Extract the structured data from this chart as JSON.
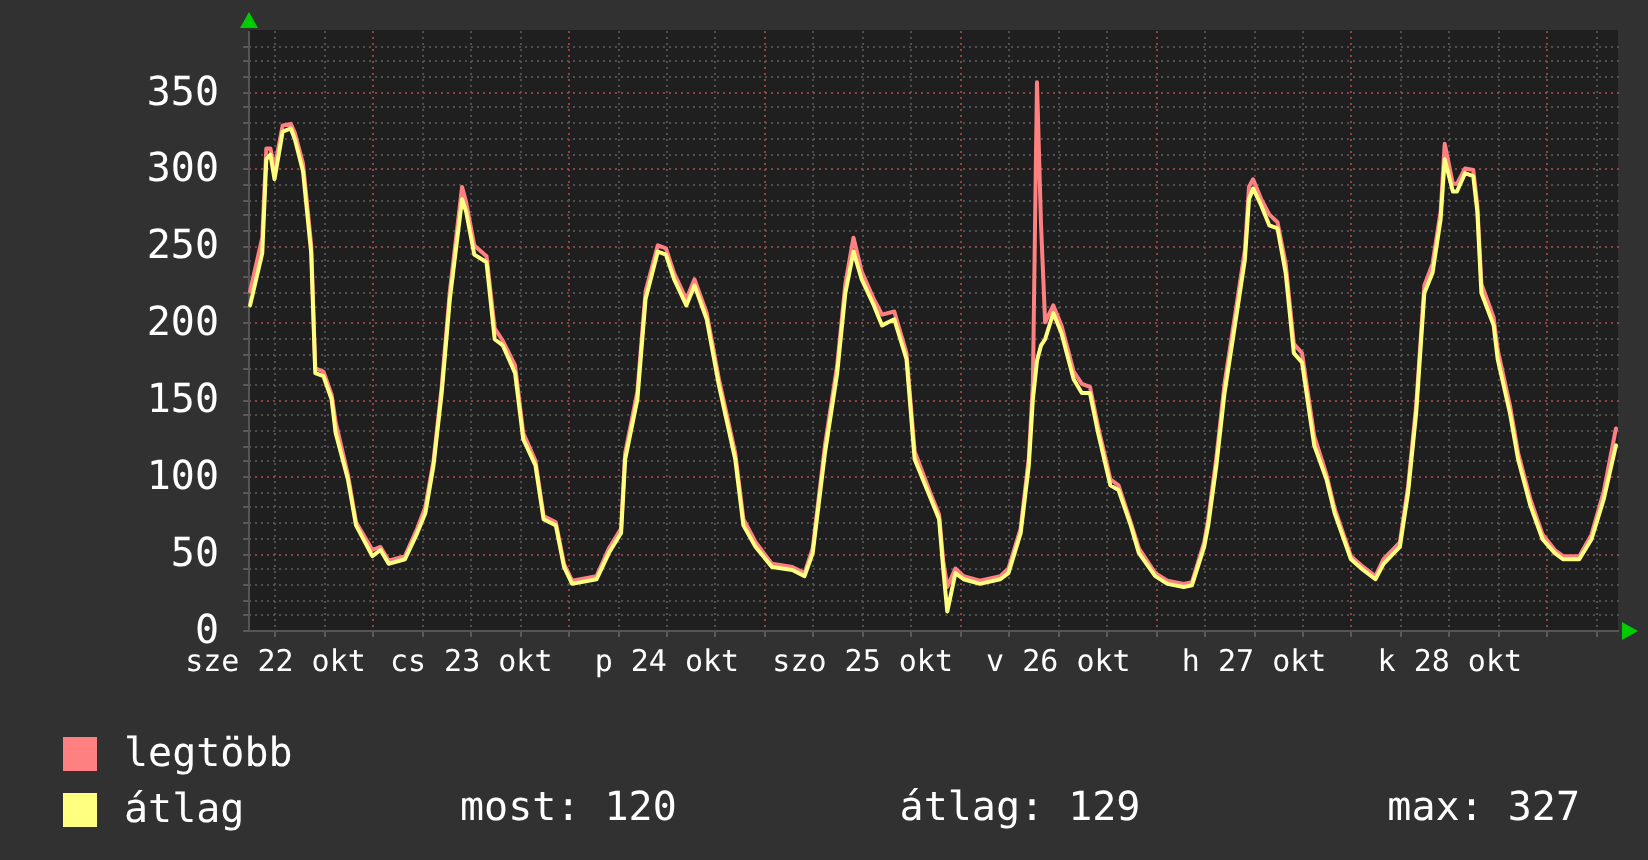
{
  "chart_data": {
    "type": "line",
    "x": [
      "--10-22T09:00",
      "--10-22T10:30",
      "--10-22T11:00",
      "--10-22T11:30",
      "--10-22T12:00",
      "--10-22T13:00",
      "--10-22T14:00",
      "--10-22T14:30",
      "--10-22T15:30",
      "--10-22T16:30",
      "--10-22T17:00",
      "--10-22T18:00",
      "--10-22T19:00",
      "--10-22T19:30",
      "--10-22T21:00",
      "--10-22T22:00",
      "--10-23T00:00",
      "--10-23T01:00",
      "--10-23T02:00",
      "--10-23T04:00",
      "--10-23T05:30",
      "--10-23T06:30",
      "--10-23T07:30",
      "--10-23T08:30",
      "--10-23T09:30",
      "--10-23T11:00",
      "--10-23T11:30",
      "--10-23T12:30",
      "--10-23T14:00",
      "--10-23T15:00",
      "--10-23T16:00",
      "--10-23T17:30",
      "--10-23T18:30",
      "--10-23T20:00",
      "--10-23T21:00",
      "--10-23T22:30",
      "--10-23T23:30",
      "--10-24T00:30",
      "--10-24T03:30",
      "--10-24T05:00",
      "--10-24T06:30",
      "--10-24T07:00",
      "--10-24T08:30",
      "--10-24T09:30",
      "--10-24T11:00",
      "--10-24T12:00",
      "--10-24T13:00",
      "--10-24T14:30",
      "--10-24T15:30",
      "--10-24T17:00",
      "--10-24T18:30",
      "--10-24T20:30",
      "--10-24T21:30",
      "--10-24T23:00",
      "--10-25T01:00",
      "--10-25T03:30",
      "--10-25T05:00",
      "--10-25T06:00",
      "--10-25T07:30",
      "--10-25T09:00",
      "--10-25T10:00",
      "--10-25T11:00",
      "--10-25T12:00",
      "--10-25T13:30",
      "--10-25T14:30",
      "--10-25T16:00",
      "--10-25T17:30",
      "--10-25T18:30",
      "--10-25T20:30",
      "--10-25T21:30",
      "--10-25T22:00",
      "--10-25T22:30",
      "--10-25T23:30",
      "--10-26T00:30",
      "--10-26T02:30",
      "--10-26T05:00",
      "--10-26T06:00",
      "--10-26T07:30",
      "--10-26T08:30",
      "--10-26T09:00",
      "--10-26T09:30",
      "--10-26T10:00",
      "--10-26T10:30",
      "--10-26T11:30",
      "--10-26T12:30",
      "--10-26T14:00",
      "--10-26T15:00",
      "--10-26T16:00",
      "--10-26T17:00",
      "--10-26T18:30",
      "--10-26T19:30",
      "--10-26T21:00",
      "--10-26T22:00",
      "--10-27T00:00",
      "--10-27T01:30",
      "--10-27T03:30",
      "--10-27T04:30",
      "--10-27T06:00",
      "--10-27T06:30",
      "--10-27T07:30",
      "--10-27T08:30",
      "--10-27T10:00",
      "--10-27T11:00",
      "--10-27T11:30",
      "--10-27T12:00",
      "--10-27T13:00",
      "--10-27T14:00",
      "--10-27T15:00",
      "--10-27T16:00",
      "--10-27T17:00",
      "--10-27T18:00",
      "--10-27T19:30",
      "--10-27T21:00",
      "--10-27T22:00",
      "--10-28T00:00",
      "--10-28T01:30",
      "--10-28T03:00",
      "--10-28T04:00",
      "--10-28T06:00",
      "--10-28T07:00",
      "--10-28T08:00",
      "--10-28T09:00",
      "--10-28T10:00",
      "--10-28T11:00",
      "--10-28T11:30",
      "--10-28T12:30",
      "--10-28T13:00",
      "--10-28T14:00",
      "--10-28T15:00",
      "--10-28T15:30",
      "--10-28T16:00",
      "--10-28T17:30",
      "--10-28T18:00",
      "--10-28T19:30",
      "--10-28T20:30",
      "--10-28T22:00",
      "--10-28T23:30",
      "--10-29T01:00",
      "--10-29T02:00",
      "--10-29T04:00",
      "--10-29T05:30",
      "--10-29T07:00",
      "--10-29T08:30"
    ],
    "series": [
      {
        "name": "legtöbb",
        "color": "#ff8080",
        "values": [
          220,
          255,
          313,
          313,
          300,
          328,
          329,
          323,
          303,
          250,
          170,
          168,
          153,
          135,
          101,
          70,
          52,
          54,
          45,
          48,
          66,
          80,
          110,
          158,
          220,
          288,
          278,
          250,
          243,
          196,
          188,
          172,
          128,
          110,
          74,
          70,
          43,
          32,
          35,
          53,
          66,
          115,
          155,
          220,
          250,
          248,
          232,
          215,
          228,
          206,
          163,
          115,
          72,
          57,
          43,
          41,
          37,
          53,
          120,
          172,
          225,
          255,
          233,
          215,
          205,
          207,
          180,
          116,
          88,
          75,
          45,
          28,
          40,
          35,
          32,
          35,
          40,
          66,
          112,
          160,
          356,
          263,
          200,
          211,
          198,
          168,
          160,
          158,
          132,
          98,
          94,
          70,
          53,
          37,
          32,
          30,
          31,
          57,
          72,
          112,
          160,
          212,
          247,
          288,
          293,
          280,
          270,
          265,
          238,
          186,
          180,
          126,
          101,
          79,
          48,
          41,
          35,
          46,
          57,
          93,
          146,
          224,
          238,
          272,
          316,
          290,
          290,
          300,
          299,
          276,
          225,
          203,
          182,
          146,
          115,
          85,
          62,
          52,
          48,
          48,
          62,
          90,
          131
        ]
      },
      {
        "name": "átlag",
        "color": "#ffff80",
        "values": [
          211,
          245,
          306,
          309,
          293,
          324,
          326,
          319,
          298,
          245,
          167,
          165,
          150,
          128,
          98,
          68,
          48,
          52,
          43,
          46,
          63,
          76,
          107,
          154,
          215,
          280,
          272,
          244,
          239,
          189,
          185,
          167,
          124,
          107,
          72,
          68,
          41,
          30,
          33,
          50,
          63,
          111,
          150,
          215,
          246,
          244,
          228,
          211,
          224,
          202,
          159,
          111,
          68,
          54,
          41,
          39,
          35,
          50,
          115,
          167,
          219,
          246,
          228,
          211,
          198,
          202,
          176,
          111,
          85,
          72,
          40,
          12,
          37,
          33,
          30,
          33,
          37,
          63,
          107,
          150,
          175,
          185,
          189,
          206,
          193,
          163,
          154,
          154,
          128,
          94,
          91,
          68,
          50,
          35,
          30,
          28,
          29,
          54,
          68,
          107,
          154,
          206,
          241,
          280,
          287,
          276,
          263,
          261,
          232,
          180,
          174,
          120,
          98,
          76,
          46,
          39,
          33,
          43,
          54,
          89,
          141,
          219,
          232,
          267,
          306,
          285,
          285,
          297,
          295,
          272,
          219,
          198,
          176,
          141,
          111,
          81,
          59,
          50,
          46,
          46,
          59,
          85,
          120
        ]
      }
    ],
    "xlim": [
      "--10-22T08:45",
      "--10-29T08:45"
    ],
    "xticks": [
      {
        "value": "--10-22T12:00",
        "label": "sze 22 okt"
      },
      {
        "value": "--10-22T18:00",
        "label": null
      },
      {
        "value": "--10-23T00:00",
        "label": null
      },
      {
        "value": "--10-23T06:00",
        "label": null
      },
      {
        "value": "--10-23T12:00",
        "label": "cs 23 okt"
      },
      {
        "value": "--10-23T18:00",
        "label": null
      },
      {
        "value": "--10-24T00:00",
        "label": null
      },
      {
        "value": "--10-24T06:00",
        "label": null
      },
      {
        "value": "--10-24T12:00",
        "label": "p 24 okt"
      },
      {
        "value": "--10-24T18:00",
        "label": null
      },
      {
        "value": "--10-25T00:00",
        "label": null
      },
      {
        "value": "--10-25T06:00",
        "label": null
      },
      {
        "value": "--10-25T12:00",
        "label": "szo 25 okt"
      },
      {
        "value": "--10-25T18:00",
        "label": null
      },
      {
        "value": "--10-26T00:00",
        "label": null
      },
      {
        "value": "--10-26T06:00",
        "label": null
      },
      {
        "value": "--10-26T12:00",
        "label": "v 26 okt"
      },
      {
        "value": "--10-26T18:00",
        "label": null
      },
      {
        "value": "--10-27T00:00",
        "label": null
      },
      {
        "value": "--10-27T06:00",
        "label": null
      },
      {
        "value": "--10-27T12:00",
        "label": "h 27 okt"
      },
      {
        "value": "--10-27T18:00",
        "label": null
      },
      {
        "value": "--10-28T00:00",
        "label": null
      },
      {
        "value": "--10-28T06:00",
        "label": null
      },
      {
        "value": "--10-28T12:00",
        "label": "k 28 okt"
      },
      {
        "value": "--10-28T18:00",
        "label": null
      },
      {
        "value": "--10-29T00:00",
        "label": null
      },
      {
        "value": "--10-29T06:00",
        "label": null
      }
    ],
    "ylim": [
      0,
      390
    ],
    "yticks": [
      0,
      {
        "value": 10,
        "label": null
      },
      {
        "value": 20,
        "label": null
      },
      {
        "value": 30,
        "label": null
      },
      {
        "value": 40,
        "label": null
      },
      50,
      {
        "value": 60,
        "label": null
      },
      {
        "value": 70,
        "label": null
      },
      {
        "value": 80,
        "label": null
      },
      {
        "value": 90,
        "label": null
      },
      100,
      {
        "value": 110,
        "label": null
      },
      {
        "value": 120,
        "label": null
      },
      {
        "value": 130,
        "label": null
      },
      {
        "value": 140,
        "label": null
      },
      150,
      {
        "value": 160,
        "label": null
      },
      {
        "value": 170,
        "label": null
      },
      {
        "value": 180,
        "label": null
      },
      {
        "value": 190,
        "label": null
      },
      200,
      {
        "value": 210,
        "label": null
      },
      {
        "value": 220,
        "label": null
      },
      {
        "value": 230,
        "label": null
      },
      {
        "value": 240,
        "label": null
      },
      250,
      {
        "value": 260,
        "label": null
      },
      {
        "value": 270,
        "label": null
      },
      {
        "value": 280,
        "label": null
      },
      {
        "value": 290,
        "label": null
      },
      300,
      {
        "value": 310,
        "label": null
      },
      {
        "value": 320,
        "label": null
      },
      {
        "value": 330,
        "label": null
      },
      {
        "value": 340,
        "label": null
      },
      350,
      {
        "value": 360,
        "label": null
      },
      {
        "value": 370,
        "label": null
      },
      {
        "value": 380,
        "label": null
      }
    ],
    "grid": true,
    "legend": "bottom left",
    "annotations": [
      "most: 120",
      "átlag: 129",
      "max: 327"
    ]
  }
}
